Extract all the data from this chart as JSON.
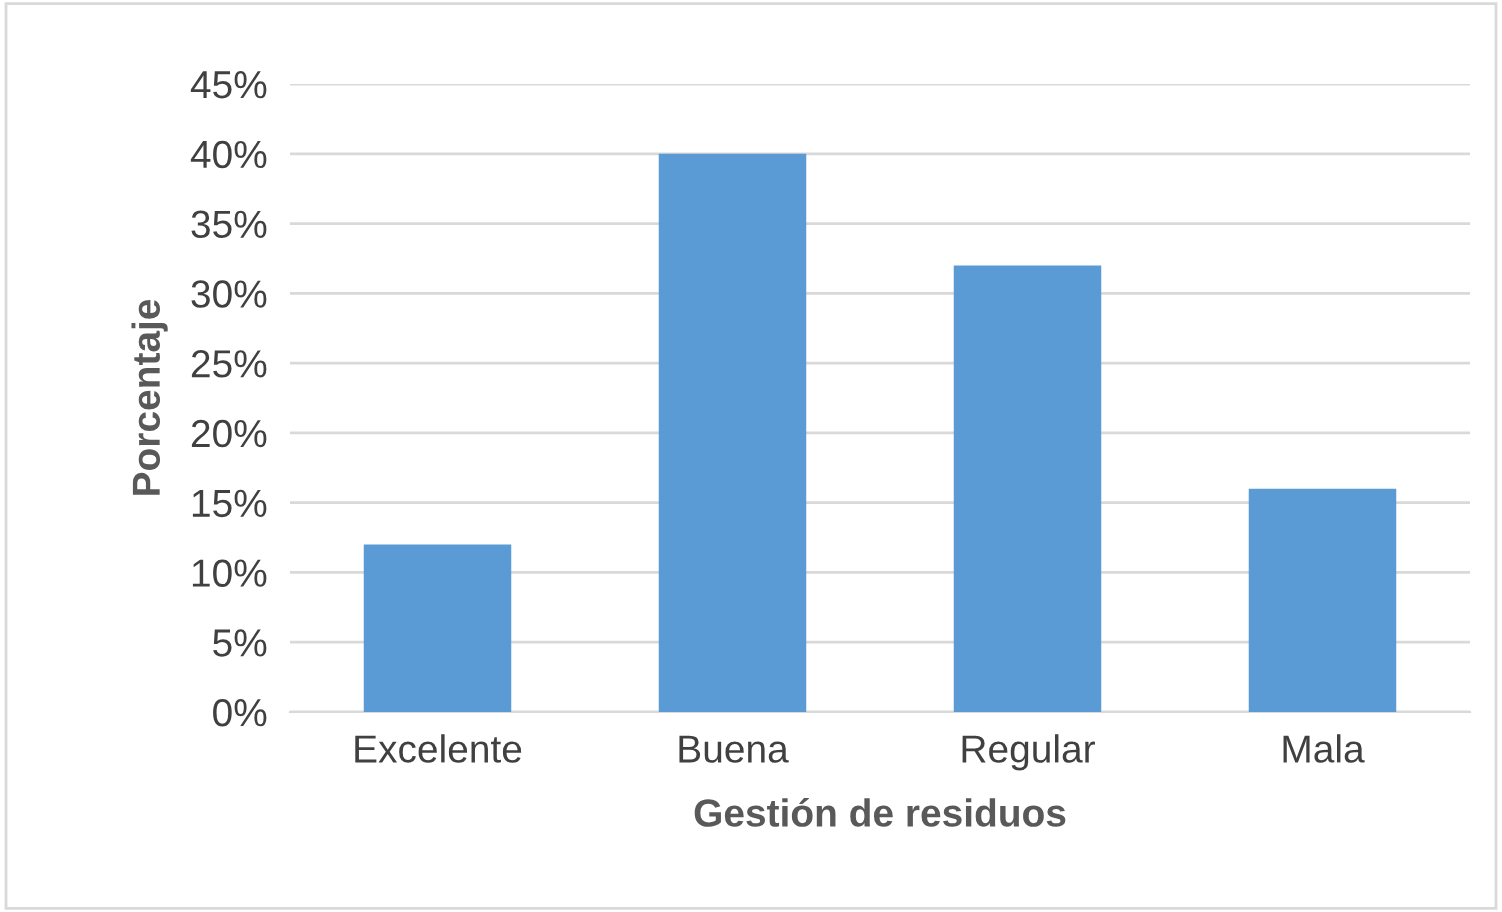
{
  "chart_data": {
    "type": "bar",
    "xlabel": "Gestión de residuos",
    "ylabel": "Porcentaje",
    "categories": [
      "Excelente",
      "Buena",
      "Regular",
      "Mala"
    ],
    "values": [
      12,
      40,
      32,
      16
    ],
    "color": "#5b9bd5",
    "ylim": [
      0,
      45
    ],
    "yticks": [
      {
        "value": 0,
        "label": "0%"
      },
      {
        "value": 5,
        "label": "5%"
      },
      {
        "value": 10,
        "label": "10%"
      },
      {
        "value": 15,
        "label": "15%"
      },
      {
        "value": 20,
        "label": "20%"
      },
      {
        "value": 25,
        "label": "25%"
      },
      {
        "value": 30,
        "label": "30%"
      },
      {
        "value": 35,
        "label": "35%"
      },
      {
        "value": 40,
        "label": "40%"
      },
      {
        "value": 45,
        "label": "45%"
      }
    ],
    "grid": "y",
    "legend": false
  }
}
